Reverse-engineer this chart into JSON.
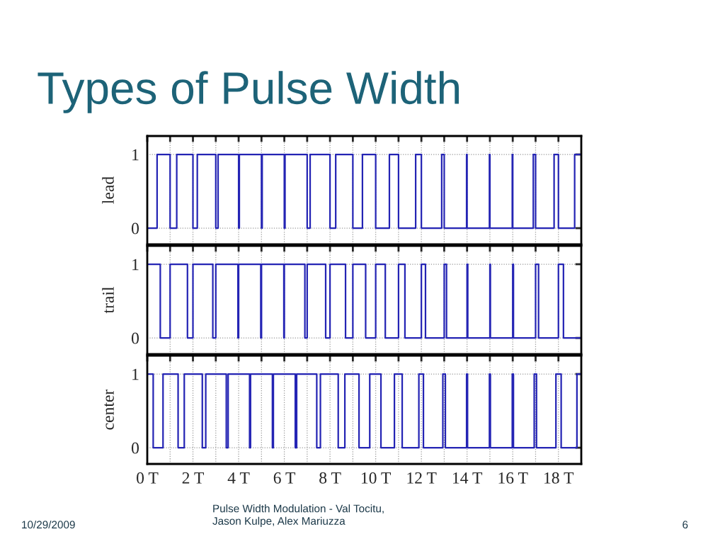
{
  "chart_data": [
    {
      "type": "step",
      "title": "Types of Pulse Width",
      "ylabel": "lead",
      "tick_labels": "y",
      "grid": true,
      "annotations": [
        "10/29/2009",
        "Pulse Width Modulation - Val Tocitu,\nJason Kulpe, Alex Mariuzza",
        "6"
      ],
      "xlim": [
        0,
        19
      ],
      "ylim": [
        -0.22,
        1.25
      ],
      "yticks": [
        0,
        1
      ],
      "xticks": [
        {
          "value": 0,
          "label": null
        },
        {
          "value": 1,
          "label": null
        },
        {
          "value": 2,
          "label": null
        },
        {
          "value": 3,
          "label": null
        },
        {
          "value": 4,
          "label": null
        },
        {
          "value": 5,
          "label": null
        },
        {
          "value": 6,
          "label": null
        },
        {
          "value": 7,
          "label": null
        },
        {
          "value": 8,
          "label": null
        },
        {
          "value": 9,
          "label": null
        },
        {
          "value": 10,
          "label": null
        },
        {
          "value": 11,
          "label": null
        },
        {
          "value": 12,
          "label": null
        },
        {
          "value": 13,
          "label": null
        },
        {
          "value": 14,
          "label": null
        },
        {
          "value": 15,
          "label": null
        },
        {
          "value": 16,
          "label": null
        },
        {
          "value": 17,
          "label": null
        },
        {
          "value": 18,
          "label": null
        }
      ],
      "series": [
        {
          "color": "#2424b4",
          "x": [
            0,
            0.43,
            1.0,
            1.29,
            2.0,
            2.19,
            3.0,
            3.1,
            4.0,
            4.03,
            5.0,
            5.03,
            6.0,
            6.03,
            7.0,
            7.13,
            8.0,
            8.25,
            9.0,
            9.42,
            10.0,
            10.6,
            11.0,
            11.75,
            12.0,
            12.89,
            13.0,
            13.98,
            14.0,
            14.98,
            15.0,
            15.98,
            16.0,
            16.9,
            17.0,
            17.81,
            18.0,
            18.71,
            19.0
          ],
          "values": [
            0,
            1,
            0,
            1,
            0,
            1,
            0,
            1,
            0,
            1,
            0,
            1,
            0,
            1,
            0,
            1,
            0,
            1,
            0,
            1,
            0,
            1,
            0,
            1,
            0,
            1,
            0,
            1,
            0,
            1,
            0,
            1,
            0,
            1,
            0,
            1,
            0,
            1,
            1
          ]
        }
      ]
    },
    {
      "type": "step",
      "ylabel": "trail",
      "tick_labels": "y",
      "grid": true,
      "xlim": [
        0,
        19
      ],
      "ylim": [
        -0.22,
        1.25
      ],
      "yticks": [
        0,
        1
      ],
      "xticks": [
        {
          "value": 0,
          "label": null
        },
        {
          "value": 1,
          "label": null
        },
        {
          "value": 2,
          "label": null
        },
        {
          "value": 3,
          "label": null
        },
        {
          "value": 4,
          "label": null
        },
        {
          "value": 5,
          "label": null
        },
        {
          "value": 6,
          "label": null
        },
        {
          "value": 7,
          "label": null
        },
        {
          "value": 8,
          "label": null
        },
        {
          "value": 9,
          "label": null
        },
        {
          "value": 10,
          "label": null
        },
        {
          "value": 11,
          "label": null
        },
        {
          "value": 12,
          "label": null
        },
        {
          "value": 13,
          "label": null
        },
        {
          "value": 14,
          "label": null
        },
        {
          "value": 15,
          "label": null
        },
        {
          "value": 16,
          "label": null
        },
        {
          "value": 17,
          "label": null
        },
        {
          "value": 18,
          "label": null
        }
      ],
      "series": [
        {
          "color": "#2424b4",
          "x": [
            0,
            0.57,
            1.0,
            1.76,
            2.0,
            2.87,
            3.0,
            3.97,
            4.0,
            4.97,
            5.0,
            5.98,
            6.0,
            6.9,
            7.0,
            7.81,
            8.0,
            8.68,
            9.0,
            9.56,
            10.0,
            10.42,
            11.0,
            11.28,
            12.0,
            12.18,
            13.0,
            13.1,
            14.0,
            14.03,
            15.0,
            15.02,
            16.0,
            16.03,
            17.0,
            17.13,
            18.0,
            18.22,
            19.0
          ],
          "values": [
            1,
            0,
            1,
            0,
            1,
            0,
            1,
            0,
            1,
            0,
            1,
            0,
            1,
            0,
            1,
            0,
            1,
            0,
            1,
            0,
            1,
            0,
            1,
            0,
            1,
            0,
            1,
            0,
            1,
            0,
            1,
            0,
            1,
            0,
            1,
            0,
            1,
            0,
            0
          ]
        }
      ]
    },
    {
      "type": "step",
      "ylabel": "center",
      "grid": true,
      "xlim": [
        0,
        19
      ],
      "ylim": [
        -0.22,
        1.25
      ],
      "yticks": [
        0,
        1
      ],
      "xticks": [
        {
          "value": 0,
          "label": "0 T"
        },
        {
          "value": 1,
          "label": null
        },
        {
          "value": 2,
          "label": "2 T"
        },
        {
          "value": 3,
          "label": null
        },
        {
          "value": 4,
          "label": "4 T"
        },
        {
          "value": 5,
          "label": null
        },
        {
          "value": 6,
          "label": "6 T"
        },
        {
          "value": 7,
          "label": null
        },
        {
          "value": 8,
          "label": "8 T"
        },
        {
          "value": 9,
          "label": null
        },
        {
          "value": 10,
          "label": "10 T"
        },
        {
          "value": 11,
          "label": null
        },
        {
          "value": 12,
          "label": "12 T"
        },
        {
          "value": 13,
          "label": null
        },
        {
          "value": 14,
          "label": "14 T"
        },
        {
          "value": 15,
          "label": null
        },
        {
          "value": 16,
          "label": "16 T"
        },
        {
          "value": 17,
          "label": null
        },
        {
          "value": 18,
          "label": "18 T"
        }
      ],
      "series": [
        {
          "color": "#2424b4",
          "x": [
            0,
            0.26,
            0.69,
            1.35,
            1.62,
            2.41,
            2.56,
            3.46,
            3.54,
            4.48,
            4.52,
            5.48,
            5.52,
            6.48,
            6.54,
            7.42,
            7.58,
            8.36,
            8.65,
            9.27,
            9.74,
            10.23,
            10.82,
            11.16,
            11.89,
            12.09,
            12.94,
            13.05,
            13.98,
            14.02,
            14.98,
            15.02,
            15.98,
            16.03,
            16.94,
            17.04,
            17.89,
            18.12,
            18.81,
            19.0
          ],
          "values": [
            1,
            0,
            1,
            0,
            1,
            0,
            1,
            0,
            1,
            0,
            1,
            0,
            1,
            0,
            1,
            0,
            1,
            0,
            1,
            0,
            1,
            0,
            1,
            0,
            1,
            0,
            1,
            0,
            1,
            0,
            1,
            0,
            1,
            0,
            1,
            0,
            1,
            0,
            1,
            1
          ]
        }
      ]
    }
  ]
}
